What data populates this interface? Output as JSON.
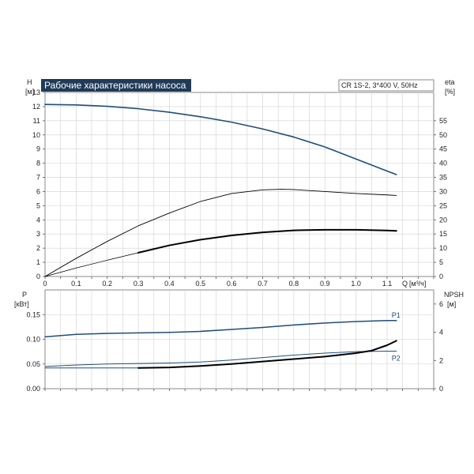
{
  "chart_data": [
    {
      "type": "line",
      "title": "Рабочие характеристики насоса",
      "info": "CR 1S-2, 3*400 V, 50Hz",
      "left_axis": {
        "name": "H",
        "unit": "[м]",
        "ticks": [
          "0",
          "1",
          "2",
          "3",
          "4",
          "5",
          "6",
          "7",
          "8",
          "9",
          "10",
          "11",
          "12",
          "13"
        ],
        "range": [
          0,
          13
        ]
      },
      "right_axis": {
        "name": "eta",
        "unit": "[%]",
        "ticks": [
          "0",
          "5",
          "10",
          "15",
          "20",
          "25",
          "30",
          "35",
          "40",
          "45",
          "50",
          "55"
        ],
        "range": [
          0,
          65
        ]
      },
      "x_axis": {
        "name": "Q",
        "unit": "[м³/ч]",
        "ticks": [
          "0",
          "0.1",
          "0.2",
          "0.3",
          "0.4",
          "0.5",
          "0.6",
          "0.7",
          "0.8",
          "0.9",
          "1.0",
          "1.1"
        ],
        "range": [
          0,
          1.25
        ]
      },
      "grid": true,
      "series": [
        {
          "axis": "left",
          "color": "#1f4e79",
          "width": 1.6,
          "points": [
            [
              0,
              12.15
            ],
            [
              0.1,
              12.12
            ],
            [
              0.2,
              12.02
            ],
            [
              0.3,
              11.85
            ],
            [
              0.4,
              11.6
            ],
            [
              0.5,
              11.28
            ],
            [
              0.6,
              10.9
            ],
            [
              0.7,
              10.42
            ],
            [
              0.8,
              9.85
            ],
            [
              0.9,
              9.15
            ],
            [
              1.0,
              8.3
            ],
            [
              1.1,
              7.45
            ],
            [
              1.13,
              7.2
            ]
          ]
        },
        {
          "axis": "right",
          "color": "#000000",
          "width": 0.9,
          "points": [
            [
              0,
              0
            ],
            [
              0.1,
              6.4
            ],
            [
              0.2,
              12.4
            ],
            [
              0.3,
              17.9
            ],
            [
              0.4,
              22.4
            ],
            [
              0.5,
              26.5
            ],
            [
              0.6,
              29.3
            ],
            [
              0.7,
              30.6
            ],
            [
              0.76,
              30.8
            ],
            [
              0.8,
              30.7
            ],
            [
              0.9,
              30.0
            ],
            [
              1.0,
              29.3
            ],
            [
              1.1,
              28.8
            ],
            [
              1.13,
              28.6
            ]
          ]
        },
        {
          "axis": "left",
          "color": "#000000",
          "width": 0.7,
          "points": [
            [
              0,
              0
            ],
            [
              0.1,
              0.6
            ],
            [
              0.2,
              1.15
            ],
            [
              0.3,
              1.68
            ]
          ]
        },
        {
          "axis": "left",
          "color": "#000000",
          "width": 2.0,
          "points": [
            [
              0.3,
              1.68
            ],
            [
              0.4,
              2.2
            ],
            [
              0.5,
              2.6
            ],
            [
              0.6,
              2.9
            ],
            [
              0.7,
              3.12
            ],
            [
              0.8,
              3.26
            ],
            [
              0.9,
              3.3
            ],
            [
              1.0,
              3.3
            ],
            [
              1.1,
              3.25
            ],
            [
              1.13,
              3.22
            ]
          ]
        }
      ]
    },
    {
      "type": "line",
      "left_axis": {
        "name": "P",
        "unit": "[кВт]",
        "ticks": [
          "0.00",
          "0.05",
          "0.10",
          "0.15"
        ],
        "range": [
          0,
          0.2
        ]
      },
      "right_axis": {
        "name": "NPSH",
        "unit": "[м]",
        "ticks": [
          "0",
          "2",
          "4",
          "6"
        ],
        "range": [
          0,
          7
        ]
      },
      "x_axis": {
        "range": [
          0,
          1.25
        ]
      },
      "grid": true,
      "series": [
        {
          "name": "P1",
          "axis": "left",
          "color": "#1f4e79",
          "width": 1.6,
          "points": [
            [
              0,
              0.105
            ],
            [
              0.1,
              0.11
            ],
            [
              0.2,
              0.112
            ],
            [
              0.3,
              0.113
            ],
            [
              0.4,
              0.114
            ],
            [
              0.5,
              0.116
            ],
            [
              0.6,
              0.12
            ],
            [
              0.7,
              0.124
            ],
            [
              0.8,
              0.129
            ],
            [
              0.9,
              0.133
            ],
            [
              1.0,
              0.136
            ],
            [
              1.1,
              0.138
            ],
            [
              1.13,
              0.138
            ]
          ]
        },
        {
          "axis": "left",
          "color": "#1f4e79",
          "width": 1.0,
          "points": [
            [
              0,
              0.045
            ],
            [
              0.1,
              0.048
            ],
            [
              0.2,
              0.05
            ],
            [
              0.3,
              0.051
            ],
            [
              0.4,
              0.052
            ],
            [
              0.5,
              0.054
            ],
            [
              0.6,
              0.058
            ],
            [
              0.7,
              0.063
            ],
            [
              0.8,
              0.068
            ],
            [
              0.9,
              0.072
            ],
            [
              1.0,
              0.075
            ],
            [
              1.1,
              0.076
            ],
            [
              1.13,
              0.076
            ]
          ]
        },
        {
          "axis": "left",
          "color": "#1f4e79",
          "width": 0.9,
          "points": [
            [
              0,
              0.042
            ],
            [
              0.1,
              0.042
            ],
            [
              0.2,
              0.042
            ],
            [
              0.3,
              0.042
            ]
          ]
        },
        {
          "name": "P2",
          "axis": "left",
          "color": "#1f4e79",
          "width": 0.9,
          "points": [
            [
              1.13,
              0.076
            ]
          ]
        },
        {
          "axis": "left",
          "color": "#000000",
          "width": 2.0,
          "points": [
            [
              0.3,
              0.042
            ],
            [
              0.4,
              0.043
            ],
            [
              0.5,
              0.046
            ],
            [
              0.6,
              0.05
            ],
            [
              0.7,
              0.055
            ],
            [
              0.8,
              0.06
            ],
            [
              0.9,
              0.065
            ],
            [
              1.0,
              0.072
            ],
            [
              1.05,
              0.077
            ],
            [
              1.1,
              0.088
            ],
            [
              1.13,
              0.097
            ]
          ]
        }
      ]
    }
  ]
}
